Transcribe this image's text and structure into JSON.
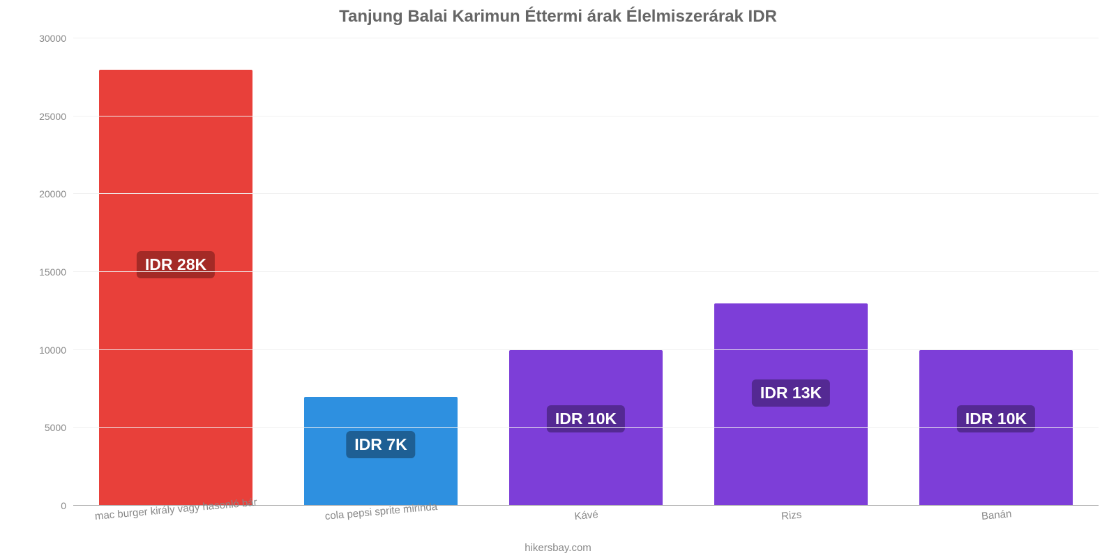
{
  "chart": {
    "type": "bar",
    "title": "Tanjung Balai Karimun Éttermi árak Élelmiszerárak IDR",
    "title_fontsize": 24,
    "title_color": "#666666",
    "credit": "hikersbay.com",
    "credit_color": "#888888",
    "background_color": "#ffffff",
    "ylim": [
      0,
      30000
    ],
    "ytick_step": 5000,
    "yticks": [
      0,
      5000,
      10000,
      15000,
      20000,
      25000,
      30000
    ],
    "grid_color": "#f0f0f0",
    "baseline_color": "#aaaaaa",
    "tick_label_color": "#888888",
    "tick_label_fontsize": 14,
    "category_label_fontsize": 15,
    "category_label_rotation_deg": -5,
    "bar_width_pct": 75,
    "value_label_fontsize": 23,
    "value_label_text_color": "#ffffff",
    "categories": [
      "mac burger király vagy hasonló bár",
      "cola pepsi sprite mirinda",
      "Kávé",
      "Rizs",
      "Banán"
    ],
    "values": [
      28000,
      7000,
      10000,
      13000,
      10000
    ],
    "value_labels": [
      "IDR 28K",
      "IDR 7K",
      "IDR 10K",
      "IDR 13K",
      "IDR 10K"
    ],
    "bar_colors": [
      "#e8403a",
      "#2e90e0",
      "#7d3ed8",
      "#7d3ed8",
      "#7d3ed8"
    ],
    "value_label_bg_colors": [
      "#a42a26",
      "#1e5f94",
      "#542993",
      "#542993",
      "#542993"
    ]
  }
}
